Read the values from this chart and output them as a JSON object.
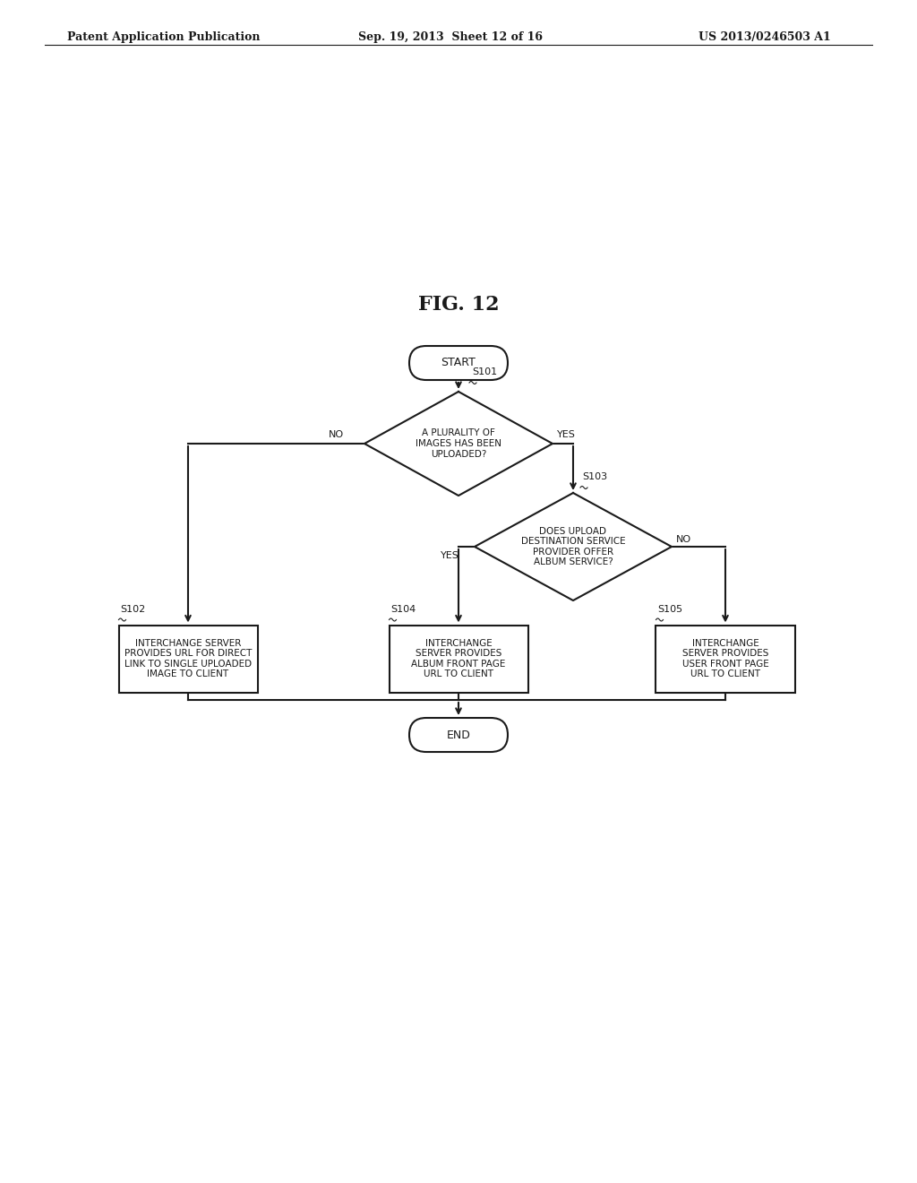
{
  "title": "FIG. 12",
  "header_left": "Patent Application Publication",
  "header_center": "Sep. 19, 2013  Sheet 12 of 16",
  "header_right": "US 2013/0246503 A1",
  "bg_color": "#ffffff",
  "text_color": "#1a1a1a",
  "node_edge_color": "#1a1a1a",
  "start_text": "START",
  "end_text": "END",
  "diamond1_label": "S101",
  "diamond1_text": "A PLURALITY OF\nIMAGES HAS BEEN\nUPLOADED?",
  "diamond2_label": "S103",
  "diamond2_text": "DOES UPLOAD\nDESTINATION SERVICE\nPROVIDER OFFER\nALBUM SERVICE?",
  "box1_label": "S102",
  "box1_text": "INTERCHANGE SERVER\nPROVIDES URL FOR DIRECT\nLINK TO SINGLE UPLOADED\nIMAGE TO CLIENT",
  "box2_label": "S104",
  "box2_text": "INTERCHANGE\nSERVER PROVIDES\nALBUM FRONT PAGE\nURL TO CLIENT",
  "box3_label": "S105",
  "box3_text": "INTERCHANGE\nSERVER PROVIDES\nUSER FRONT PAGE\nURL TO CLIENT",
  "yes_label": "YES",
  "no_label": "NO",
  "line_width": 1.5,
  "font_size": 8,
  "title_font_size": 16,
  "header_font_size": 9
}
